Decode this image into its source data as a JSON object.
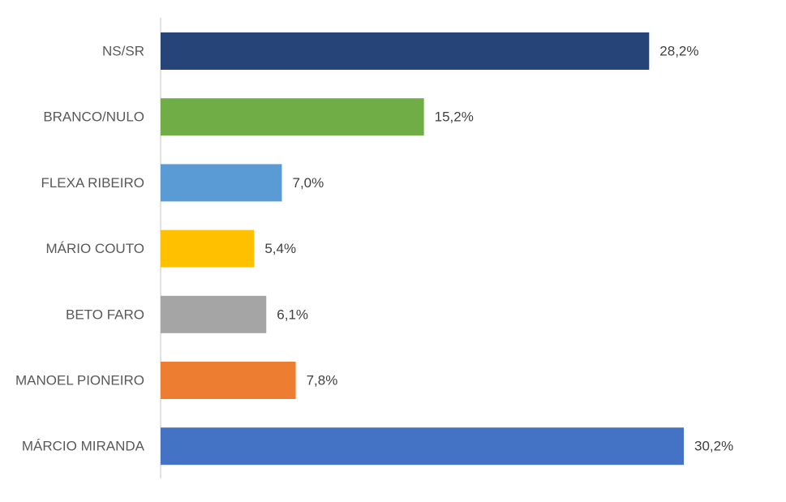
{
  "chart_data": {
    "type": "bar",
    "orientation": "horizontal",
    "categories": [
      "NS/SR",
      "BRANCO/NULO",
      "FLEXA RIBEIRO",
      "MÁRIO COUTO",
      "BETO FARO",
      "MANOEL PIONEIRO",
      "MÁRCIO MIRANDA"
    ],
    "values": [
      28.2,
      15.2,
      7.0,
      5.4,
      6.1,
      7.8,
      30.2
    ],
    "value_labels": [
      "28,2%",
      "15,2%",
      "7,0%",
      "5,4%",
      "6,1%",
      "7,8%",
      "30,2%"
    ],
    "colors": [
      "#264478",
      "#70AD47",
      "#5B9BD5",
      "#FFC000",
      "#A5A5A5",
      "#ED7D31",
      "#4472C4"
    ],
    "title": "",
    "xlabel": "",
    "ylabel": "",
    "xlim": [
      0,
      35
    ],
    "grid": false,
    "legend": "none",
    "axis_color": "#D9D9D9",
    "label_color": "#595959",
    "value_label_color": "#404040"
  }
}
